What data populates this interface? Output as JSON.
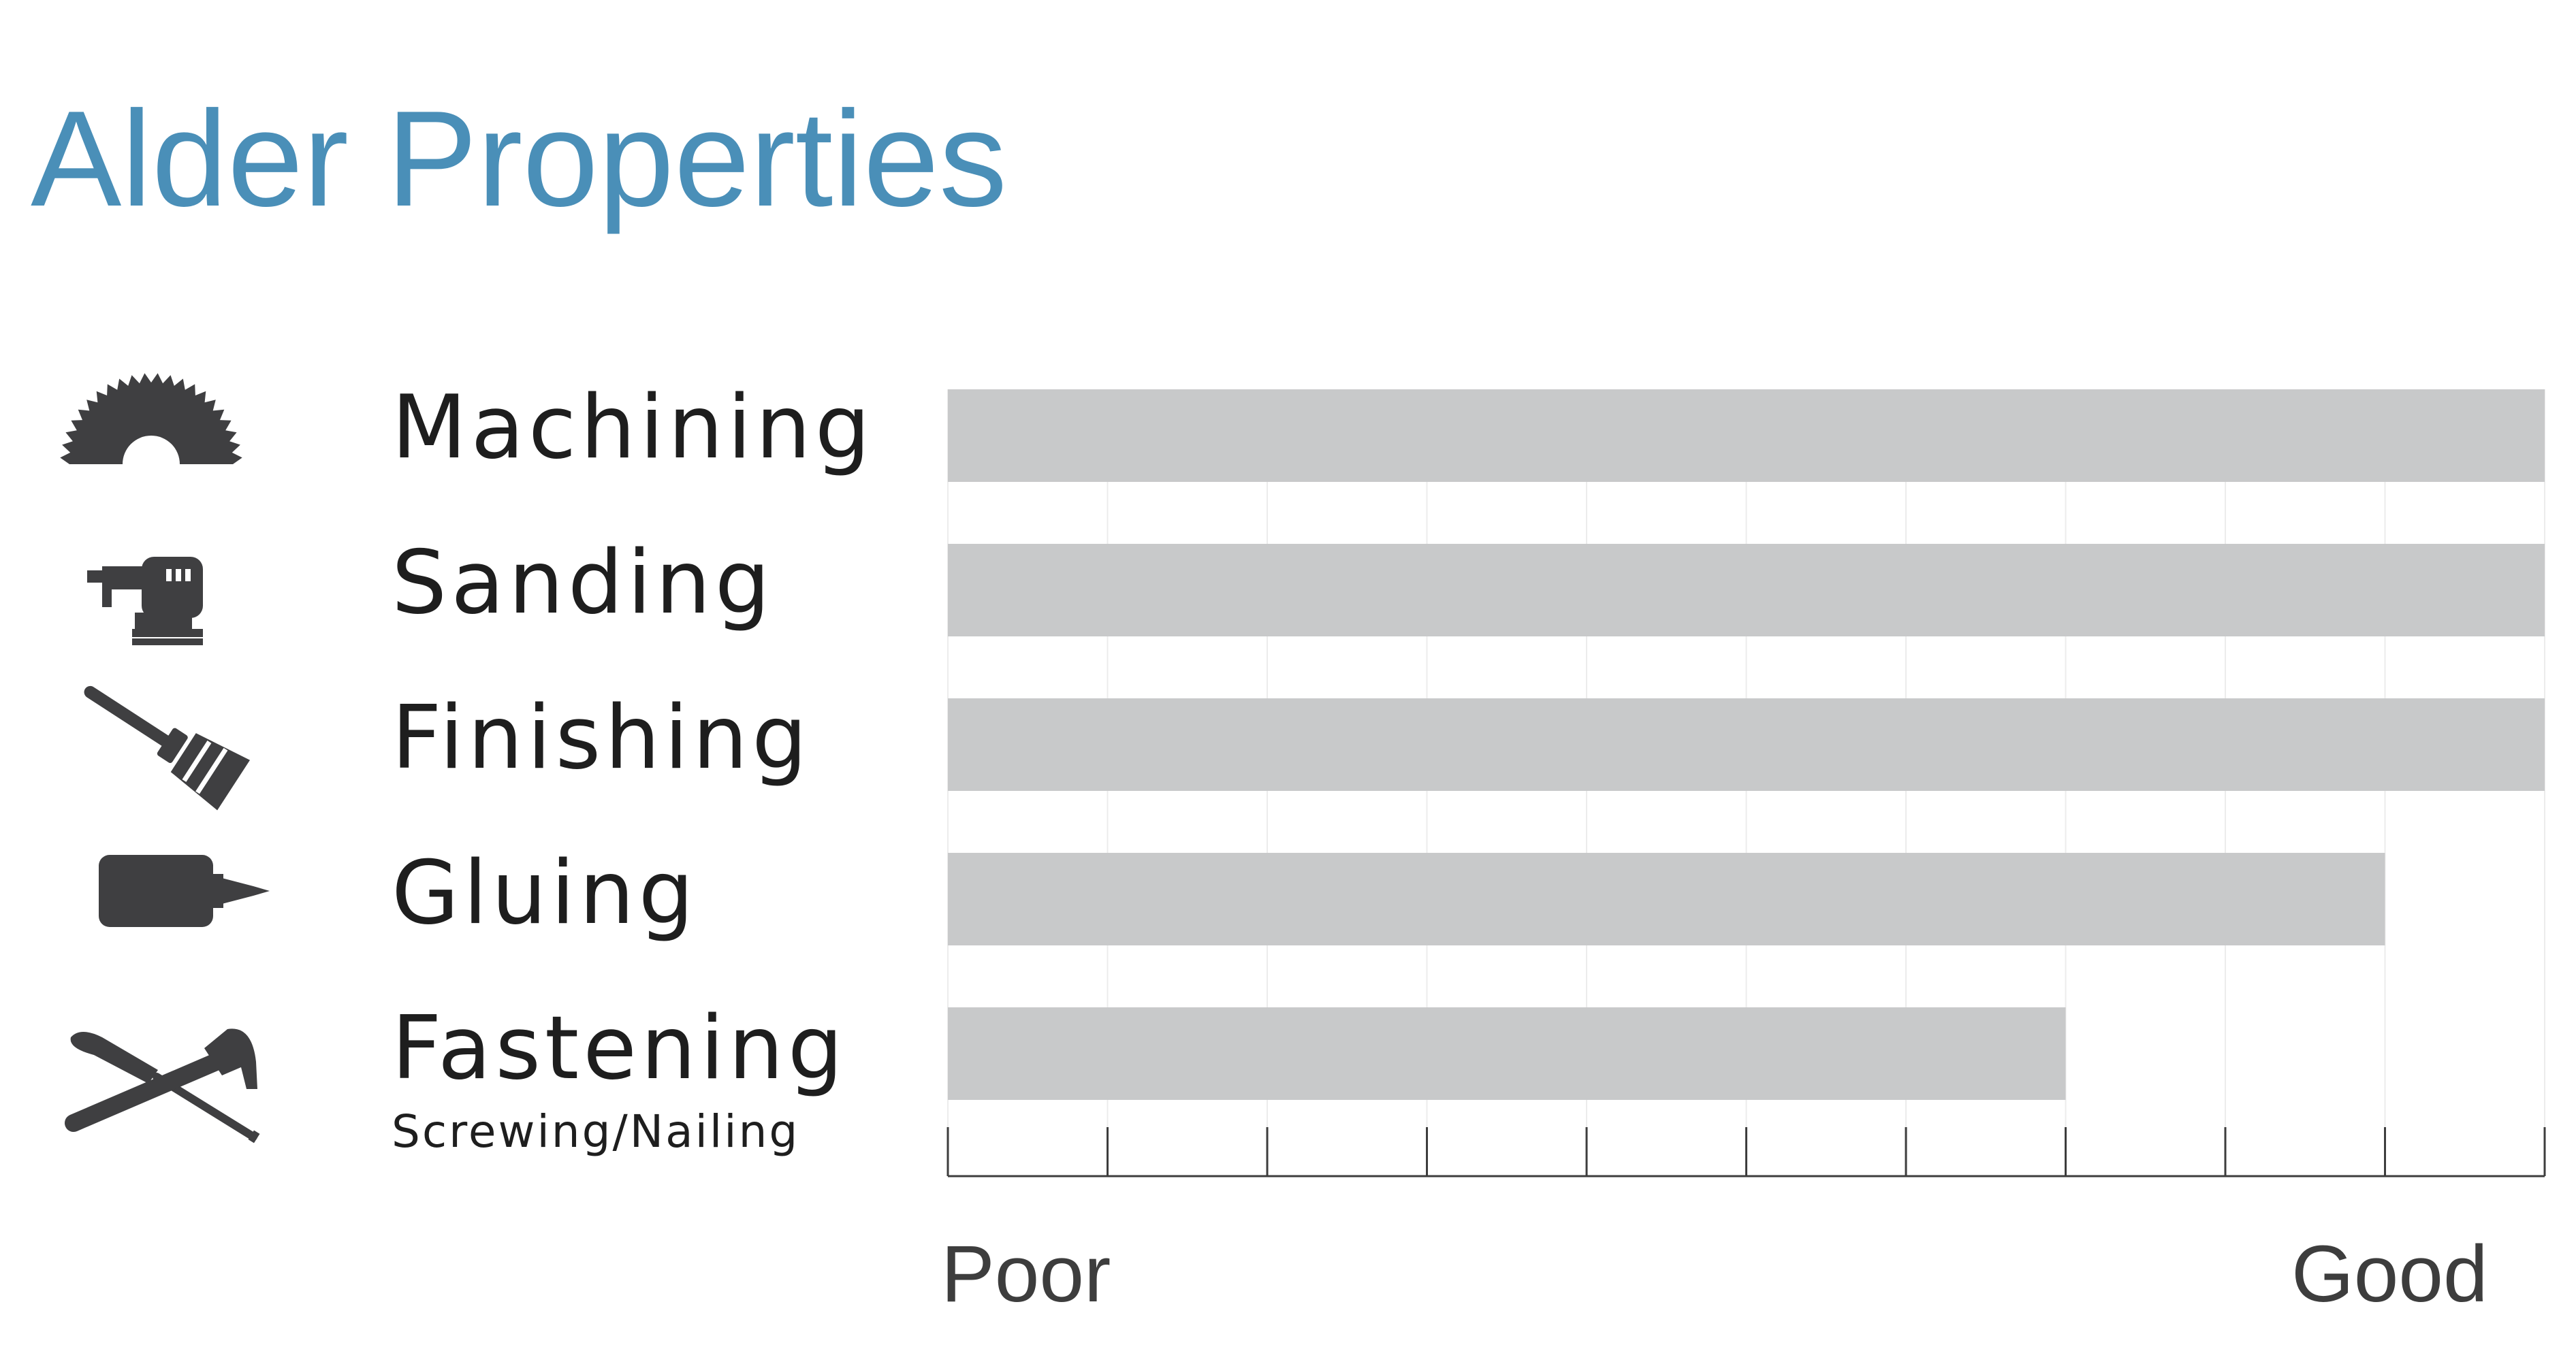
{
  "chart_data": {
    "type": "bar",
    "orientation": "horizontal",
    "title": "Alder Properties",
    "categories": [
      "Machining",
      "Sanding",
      "Finishing",
      "Gluing",
      "Fastening"
    ],
    "category_sublabels": [
      "",
      "",
      "",
      "",
      "Screwing/Nailing"
    ],
    "values": [
      10,
      10,
      10,
      9,
      7
    ],
    "xlim": [
      0,
      10
    ],
    "scale_labels": {
      "min": "Poor",
      "max": "Good"
    },
    "grid": true,
    "bar_color": "#c8c9ca",
    "title_color": "#4a8fb8",
    "icons": [
      "saw-blade-icon",
      "orbital-sander-icon",
      "paint-brush-icon",
      "glue-bottle-icon",
      "hammer-screwdriver-icon"
    ]
  }
}
